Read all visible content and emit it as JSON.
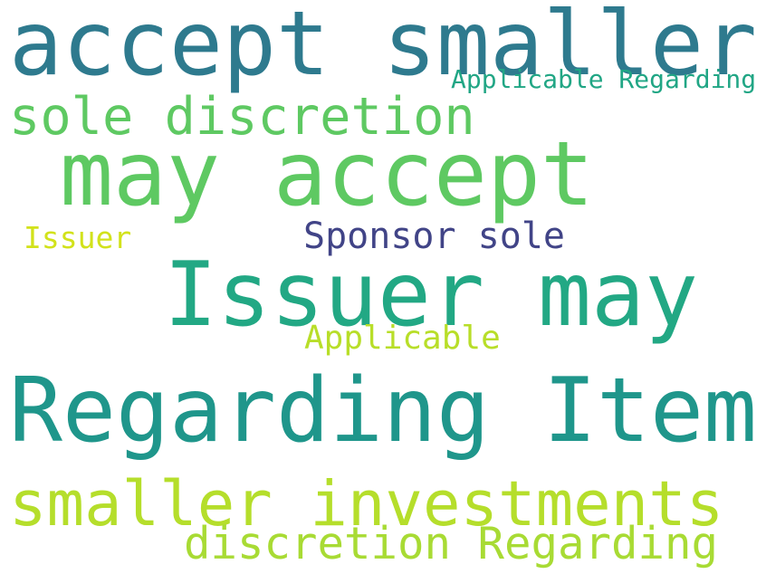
{
  "words": [
    {
      "text": "accept smaller",
      "color": "#2e7a8e"
    },
    {
      "text": "Applicable Regarding",
      "color": "#21a685"
    },
    {
      "text": "sole discretion",
      "color": "#5ec962"
    },
    {
      "text": "may accept",
      "color": "#5ec962"
    },
    {
      "text": "Issuer",
      "color": "#d2e21b"
    },
    {
      "text": "Sponsor sole",
      "color": "#414487"
    },
    {
      "text": "Issuer may",
      "color": "#22a884"
    },
    {
      "text": "Applicable",
      "color": "#b8de29"
    },
    {
      "text": "Regarding Item",
      "color": "#1f968b"
    },
    {
      "text": "smaller investments",
      "color": "#b5de2b"
    },
    {
      "text": "discretion Regarding",
      "color": "#a8db34"
    }
  ]
}
